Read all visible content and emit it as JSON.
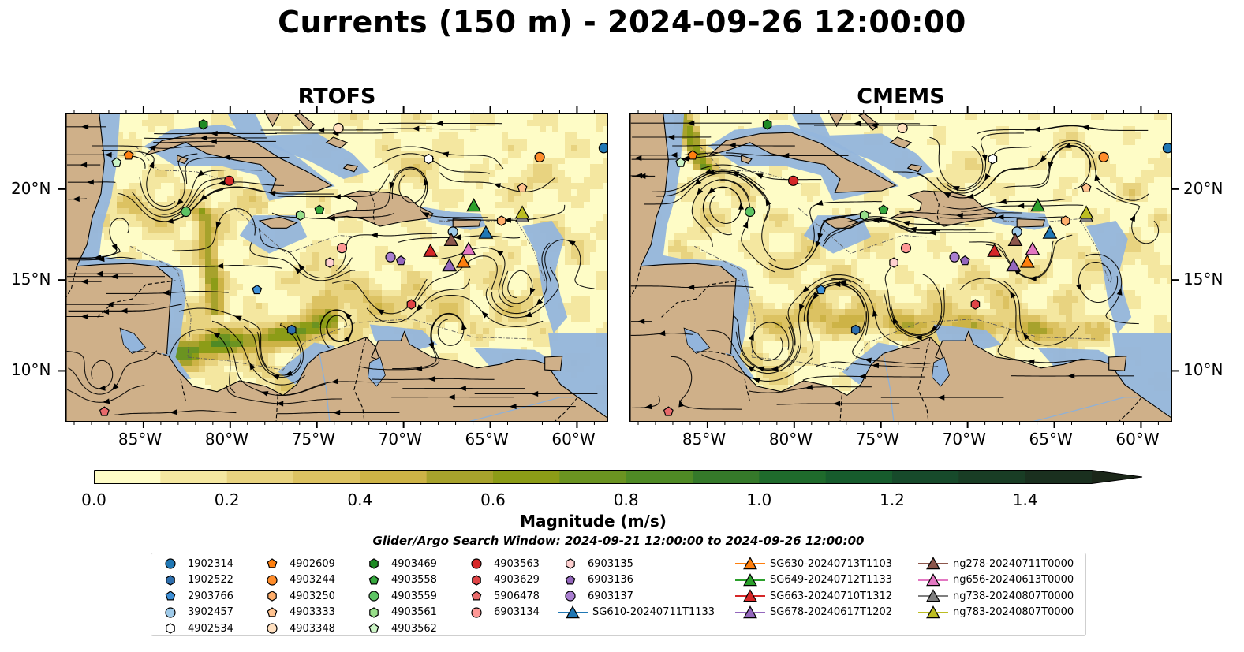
{
  "title": "Currents (150 m) - 2024-09-26 12:00:00",
  "panels": [
    {
      "title": "RTOFS"
    },
    {
      "title": "CMEMS"
    }
  ],
  "axes": {
    "lon_labels": [
      "85°W",
      "80°W",
      "75°W",
      "70°W",
      "65°W",
      "60°W"
    ],
    "lat_labels": [
      "20°N",
      "15°N",
      "10°N"
    ],
    "lon_range": [
      -89.5,
      -58.2
    ],
    "lat_range": [
      7.2,
      24.2
    ]
  },
  "colorbar": {
    "label": "Magnitude (m/s)",
    "ticks": [
      "0.0",
      "0.2",
      "0.4",
      "0.6",
      "0.8",
      "1.0",
      "1.2",
      "1.4"
    ],
    "range": [
      0.0,
      1.5
    ],
    "extend": "max",
    "colors": [
      "#fefcc6",
      "#f4e7a0",
      "#e8d380",
      "#dcc262",
      "#cdb346",
      "#a7a22c",
      "#8c9c17",
      "#6b9321",
      "#4f8a25",
      "#35792a",
      "#1f6b2c",
      "#175c2d",
      "#174a2b",
      "#193d25",
      "#1a301f",
      "#1b2719"
    ]
  },
  "search_window": "Glider/Argo Search Window: 2024-09-21 12:00:00 to 2024-09-26 12:00:00",
  "map_colors": {
    "land": "#cfb089",
    "water_shallow": "#93b5dc",
    "coast": "#000000"
  },
  "legend": {
    "columns": [
      [
        {
          "label": "1902314",
          "marker": "circle",
          "color": "#1f77b4"
        },
        {
          "label": "1902522",
          "marker": "hexagon",
          "color": "#2e6fae"
        },
        {
          "label": "2903766",
          "marker": "pentagon",
          "color": "#3d8fd6"
        },
        {
          "label": "3902457",
          "marker": "circle",
          "color": "#9ecae9"
        },
        {
          "label": "4902534",
          "marker": "hexagon",
          "color": "#ffffff"
        }
      ],
      [
        {
          "label": "4902609",
          "marker": "pentagon",
          "color": "#ff7f0e"
        },
        {
          "label": "4903244",
          "marker": "circle",
          "color": "#ff8c2a"
        },
        {
          "label": "4903250",
          "marker": "hexagon",
          "color": "#ffae6b"
        },
        {
          "label": "4903333",
          "marker": "pentagon",
          "color": "#ffc28f"
        },
        {
          "label": "4903348",
          "marker": "circle",
          "color": "#ffe0c0"
        }
      ],
      [
        {
          "label": "4903469",
          "marker": "hexagon",
          "color": "#1e8a24"
        },
        {
          "label": "4903558",
          "marker": "pentagon",
          "color": "#36a83d"
        },
        {
          "label": "4903559",
          "marker": "circle",
          "color": "#5dc463"
        },
        {
          "label": "4903561",
          "marker": "hexagon",
          "color": "#98df8a"
        },
        {
          "label": "4903562",
          "marker": "pentagon",
          "color": "#ccf5c6"
        }
      ],
      [
        {
          "label": "4903563",
          "marker": "circle",
          "color": "#d62728"
        },
        {
          "label": "4903629",
          "marker": "hexagon",
          "color": "#e04446"
        },
        {
          "label": "5906478",
          "marker": "pentagon",
          "color": "#e86a6b"
        },
        {
          "label": "6903134",
          "marker": "circle",
          "color": "#ff9896"
        }
      ],
      [
        {
          "label": "6903135",
          "marker": "hexagon",
          "color": "#ffd1d1"
        },
        {
          "label": "6903136",
          "marker": "pentagon",
          "color": "#9467bd"
        },
        {
          "label": "6903137",
          "marker": "circle",
          "color": "#a97ed0"
        },
        {
          "label": "SG610-20240711T1133",
          "marker": "triangle-line",
          "color": "#1f77b4"
        }
      ],
      [
        {
          "label": "SG630-20240713T1103",
          "marker": "triangle-line",
          "color": "#ff7f0e"
        },
        {
          "label": "SG649-20240712T1133",
          "marker": "triangle-line",
          "color": "#2ca02c"
        },
        {
          "label": "SG663-20240710T1312",
          "marker": "triangle-line",
          "color": "#d62728"
        },
        {
          "label": "SG678-20240617T1202",
          "marker": "triangle-line",
          "color": "#9467bd"
        }
      ],
      [
        {
          "label": "ng278-20240711T0000",
          "marker": "triangle-line",
          "color": "#8c564b"
        },
        {
          "label": "ng656-20240613T0000",
          "marker": "triangle-line",
          "color": "#e377c2"
        },
        {
          "label": "ng738-20240807T0000",
          "marker": "triangle-line",
          "color": "#7f7f7f"
        },
        {
          "label": "ng783-20240807T0000",
          "marker": "triangle-line",
          "color": "#bcbd22"
        }
      ]
    ]
  },
  "platforms": [
    {
      "id": "1902314",
      "marker": "circle",
      "color": "#1f77b4",
      "lon": -58.5,
      "lat": 22.3
    },
    {
      "id": "1902522",
      "marker": "hexagon",
      "color": "#2e6fae",
      "lon": -76.5,
      "lat": 12.3
    },
    {
      "id": "2903766",
      "marker": "pentagon",
      "color": "#3d8fd6",
      "lon": -78.5,
      "lat": 14.5
    },
    {
      "id": "3902457",
      "marker": "circle",
      "color": "#9ecae9",
      "lon": -67.2,
      "lat": 17.7
    },
    {
      "id": "4902534",
      "marker": "hexagon",
      "color": "#ffffff",
      "lon": -68.6,
      "lat": 21.7
    },
    {
      "id": "4902609",
      "marker": "pentagon",
      "color": "#ff7f0e",
      "lon": -85.9,
      "lat": 21.9
    },
    {
      "id": "4903244",
      "marker": "circle",
      "color": "#ff8c2a",
      "lon": -62.2,
      "lat": 21.8
    },
    {
      "id": "4903250",
      "marker": "hexagon",
      "color": "#ffae6b",
      "lon": -64.4,
      "lat": 18.3
    },
    {
      "id": "4903333",
      "marker": "pentagon",
      "color": "#ffc28f",
      "lon": -63.2,
      "lat": 20.1
    },
    {
      "id": "4903348",
      "marker": "circle",
      "color": "#ffe0c0",
      "lon": -73.8,
      "lat": 23.4
    },
    {
      "id": "4903469",
      "marker": "hexagon",
      "color": "#1e8a24",
      "lon": -81.6,
      "lat": 23.6
    },
    {
      "id": "4903558",
      "marker": "pentagon",
      "color": "#36a83d",
      "lon": -74.9,
      "lat": 18.9
    },
    {
      "id": "4903559",
      "marker": "circle",
      "color": "#5dc463",
      "lon": -82.6,
      "lat": 18.8
    },
    {
      "id": "4903561",
      "marker": "hexagon",
      "color": "#98df8a",
      "lon": -76.0,
      "lat": 18.6
    },
    {
      "id": "4903562",
      "marker": "pentagon",
      "color": "#ccf5c6",
      "lon": -86.6,
      "lat": 21.5
    },
    {
      "id": "4903563",
      "marker": "circle",
      "color": "#d62728",
      "lon": -80.1,
      "lat": 20.5
    },
    {
      "id": "4903629",
      "marker": "hexagon",
      "color": "#e04446",
      "lon": -69.6,
      "lat": 13.7
    },
    {
      "id": "5906478",
      "marker": "pentagon",
      "color": "#e86a6b",
      "lon": -87.3,
      "lat": 7.8
    },
    {
      "id": "6903134",
      "marker": "circle",
      "color": "#ff9896",
      "lon": -73.6,
      "lat": 16.8
    },
    {
      "id": "6903135",
      "marker": "hexagon",
      "color": "#ffd1d1",
      "lon": -74.3,
      "lat": 16.0
    },
    {
      "id": "6903136",
      "marker": "pentagon",
      "color": "#9467bd",
      "lon": -70.2,
      "lat": 16.1
    },
    {
      "id": "6903137",
      "marker": "circle",
      "color": "#a97ed0",
      "lon": -70.8,
      "lat": 16.3
    },
    {
      "id": "SG610-20240711T1133",
      "marker": "triangle",
      "color": "#1f77b4",
      "lon": -65.3,
      "lat": 17.6
    },
    {
      "id": "SG630-20240713T1103",
      "marker": "triangle",
      "color": "#ff7f0e",
      "lon": -66.6,
      "lat": 16.0
    },
    {
      "id": "SG649-20240712T1133",
      "marker": "triangle",
      "color": "#2ca02c",
      "lon": -66.0,
      "lat": 19.1
    },
    {
      "id": "SG663-20240710T1312",
      "marker": "triangle",
      "color": "#d62728",
      "lon": -68.5,
      "lat": 16.6
    },
    {
      "id": "SG678-20240617T1202",
      "marker": "triangle",
      "color": "#9467bd",
      "lon": -67.4,
      "lat": 15.8
    },
    {
      "id": "ng278-20240711T0000",
      "marker": "triangle",
      "color": "#8c564b",
      "lon": -67.3,
      "lat": 17.2
    },
    {
      "id": "ng656-20240613T0000",
      "marker": "triangle",
      "color": "#e377c2",
      "lon": -66.3,
      "lat": 16.7
    },
    {
      "id": "ng738-20240807T0000",
      "marker": "triangle",
      "color": "#7f7f7f",
      "lon": -63.2,
      "lat": 18.5
    },
    {
      "id": "ng783-20240807T0000",
      "marker": "triangle",
      "color": "#bcbd22",
      "lon": -63.2,
      "lat": 18.7
    }
  ]
}
